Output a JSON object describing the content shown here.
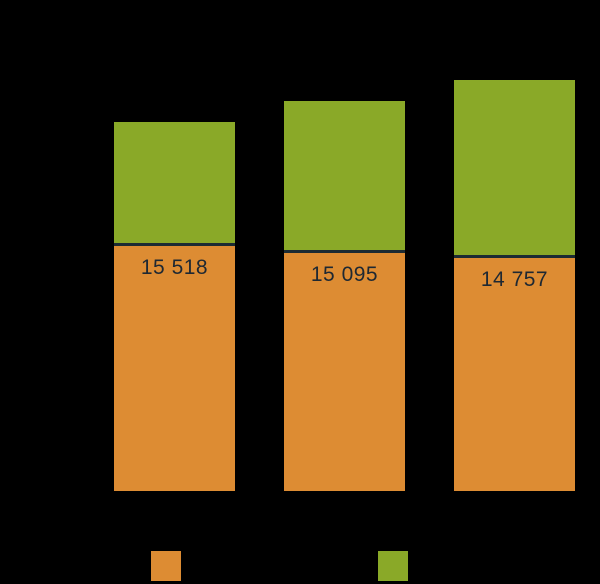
{
  "colors": {
    "background": "#000000",
    "orange": "#DD8C33",
    "green": "#8AA928",
    "divider": "#1C2B33",
    "value_label_text": "#1E2832"
  },
  "chart_data": {
    "type": "bar",
    "stacked": true,
    "title": "",
    "xlabel": "",
    "ylabel": "",
    "categories": [
      "",
      "",
      ""
    ],
    "series": [
      {
        "name": "orange-bottom-segment",
        "color": "#DD8C33",
        "values": [
          15518,
          15095,
          14757
        ],
        "data_labels": [
          "15 518",
          "15 095",
          "14 757"
        ]
      },
      {
        "name": "green-top-segment",
        "color": "#8AA928",
        "values": [
          7850,
          9620,
          11270
        ],
        "values_are_estimated_from_pixels": true,
        "data_labels": [
          "",
          "",
          ""
        ]
      }
    ],
    "totals_estimated": [
      23370,
      24715,
      26030
    ],
    "grid": false,
    "axes_visible": false,
    "legend_position": "bottom"
  },
  "legend": {
    "items": [
      {
        "swatch_color": "#DD8C33",
        "label": ""
      },
      {
        "swatch_color": "#8AA928",
        "label": ""
      }
    ]
  }
}
